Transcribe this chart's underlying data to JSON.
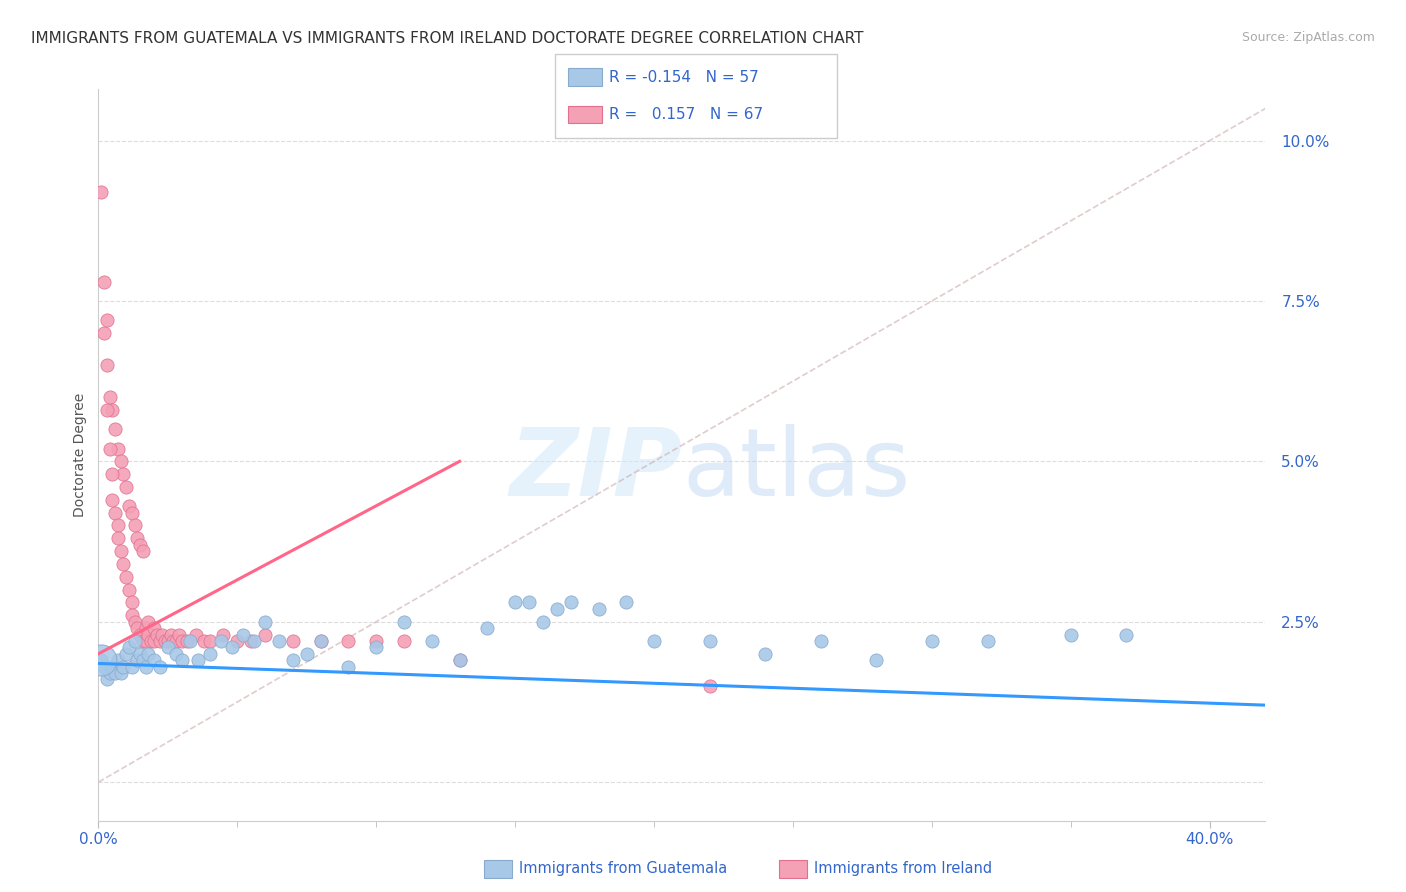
{
  "title": "IMMIGRANTS FROM GUATEMALA VS IMMIGRANTS FROM IRELAND DOCTORATE DEGREE CORRELATION CHART",
  "source": "Source: ZipAtlas.com",
  "ylabel": "Doctorate Degree",
  "yticks": [
    0.0,
    0.025,
    0.05,
    0.075,
    0.1
  ],
  "ytick_labels": [
    "",
    "2.5%",
    "5.0%",
    "7.5%",
    "10.0%"
  ],
  "xlim": [
    0.0,
    0.42
  ],
  "ylim": [
    -0.006,
    0.108
  ],
  "watermark": "ZIPatlas",
  "legend": {
    "series1_color": "#a8c8e8",
    "series1_edge": "#88aacc",
    "series1_label": "Immigrants from Guatemala",
    "series1_R": "-0.154",
    "series1_N": "57",
    "series2_color": "#f4a0b5",
    "series2_edge": "#e07090",
    "series2_label": "Immigrants from Ireland",
    "series2_R": "0.157",
    "series2_N": "67"
  },
  "regression_line_guatemala": {
    "color": "#3399ff",
    "x_start": 0.0,
    "y_start": 0.0185,
    "x_end": 0.42,
    "y_end": 0.012
  },
  "regression_line_ireland": {
    "color": "#ff6688",
    "x_start": 0.0,
    "y_start": 0.02,
    "x_end": 0.13,
    "y_end": 0.05
  },
  "diagonal_dashed_line": {
    "color": "#ccaaaa",
    "x_start": 0.0,
    "y_start": 0.0,
    "x_end": 0.42,
    "y_end": 0.105
  },
  "scatter_guatemala": [
    [
      0.001,
      0.019
    ],
    [
      0.002,
      0.018
    ],
    [
      0.003,
      0.016
    ],
    [
      0.004,
      0.017
    ],
    [
      0.005,
      0.018
    ],
    [
      0.006,
      0.017
    ],
    [
      0.007,
      0.019
    ],
    [
      0.008,
      0.017
    ],
    [
      0.009,
      0.018
    ],
    [
      0.01,
      0.02
    ],
    [
      0.011,
      0.021
    ],
    [
      0.012,
      0.018
    ],
    [
      0.013,
      0.022
    ],
    [
      0.014,
      0.019
    ],
    [
      0.015,
      0.02
    ],
    [
      0.016,
      0.019
    ],
    [
      0.017,
      0.018
    ],
    [
      0.018,
      0.02
    ],
    [
      0.02,
      0.019
    ],
    [
      0.022,
      0.018
    ],
    [
      0.025,
      0.021
    ],
    [
      0.028,
      0.02
    ],
    [
      0.03,
      0.019
    ],
    [
      0.033,
      0.022
    ],
    [
      0.036,
      0.019
    ],
    [
      0.04,
      0.02
    ],
    [
      0.044,
      0.022
    ],
    [
      0.048,
      0.021
    ],
    [
      0.052,
      0.023
    ],
    [
      0.056,
      0.022
    ],
    [
      0.06,
      0.025
    ],
    [
      0.065,
      0.022
    ],
    [
      0.07,
      0.019
    ],
    [
      0.075,
      0.02
    ],
    [
      0.08,
      0.022
    ],
    [
      0.09,
      0.018
    ],
    [
      0.1,
      0.021
    ],
    [
      0.11,
      0.025
    ],
    [
      0.12,
      0.022
    ],
    [
      0.13,
      0.019
    ],
    [
      0.14,
      0.024
    ],
    [
      0.15,
      0.028
    ],
    [
      0.155,
      0.028
    ],
    [
      0.16,
      0.025
    ],
    [
      0.165,
      0.027
    ],
    [
      0.17,
      0.028
    ],
    [
      0.18,
      0.027
    ],
    [
      0.19,
      0.028
    ],
    [
      0.2,
      0.022
    ],
    [
      0.22,
      0.022
    ],
    [
      0.24,
      0.02
    ],
    [
      0.26,
      0.022
    ],
    [
      0.28,
      0.019
    ],
    [
      0.3,
      0.022
    ],
    [
      0.32,
      0.022
    ],
    [
      0.35,
      0.023
    ],
    [
      0.37,
      0.023
    ]
  ],
  "scatter_guatemala_large": [
    [
      0.001,
      0.019,
      500
    ]
  ],
  "scatter_ireland": [
    [
      0.001,
      0.092
    ],
    [
      0.002,
      0.078
    ],
    [
      0.003,
      0.065
    ],
    [
      0.004,
      0.06
    ],
    [
      0.005,
      0.058
    ],
    [
      0.006,
      0.055
    ],
    [
      0.007,
      0.052
    ],
    [
      0.008,
      0.05
    ],
    [
      0.009,
      0.048
    ],
    [
      0.01,
      0.046
    ],
    [
      0.011,
      0.043
    ],
    [
      0.012,
      0.042
    ],
    [
      0.013,
      0.04
    ],
    [
      0.014,
      0.038
    ],
    [
      0.015,
      0.037
    ],
    [
      0.016,
      0.036
    ],
    [
      0.002,
      0.07
    ],
    [
      0.003,
      0.072
    ],
    [
      0.003,
      0.058
    ],
    [
      0.004,
      0.052
    ],
    [
      0.005,
      0.048
    ],
    [
      0.005,
      0.044
    ],
    [
      0.006,
      0.042
    ],
    [
      0.007,
      0.04
    ],
    [
      0.007,
      0.038
    ],
    [
      0.008,
      0.036
    ],
    [
      0.009,
      0.034
    ],
    [
      0.01,
      0.032
    ],
    [
      0.011,
      0.03
    ],
    [
      0.012,
      0.028
    ],
    [
      0.012,
      0.026
    ],
    [
      0.013,
      0.025
    ],
    [
      0.014,
      0.024
    ],
    [
      0.015,
      0.023
    ],
    [
      0.016,
      0.022
    ],
    [
      0.017,
      0.022
    ],
    [
      0.017,
      0.024
    ],
    [
      0.018,
      0.025
    ],
    [
      0.018,
      0.023
    ],
    [
      0.019,
      0.022
    ],
    [
      0.02,
      0.022
    ],
    [
      0.02,
      0.024
    ],
    [
      0.021,
      0.023
    ],
    [
      0.022,
      0.022
    ],
    [
      0.023,
      0.023
    ],
    [
      0.024,
      0.022
    ],
    [
      0.025,
      0.022
    ],
    [
      0.026,
      0.023
    ],
    [
      0.027,
      0.022
    ],
    [
      0.028,
      0.022
    ],
    [
      0.029,
      0.023
    ],
    [
      0.03,
      0.022
    ],
    [
      0.032,
      0.022
    ],
    [
      0.035,
      0.023
    ],
    [
      0.038,
      0.022
    ],
    [
      0.04,
      0.022
    ],
    [
      0.045,
      0.023
    ],
    [
      0.05,
      0.022
    ],
    [
      0.055,
      0.022
    ],
    [
      0.06,
      0.023
    ],
    [
      0.07,
      0.022
    ],
    [
      0.08,
      0.022
    ],
    [
      0.09,
      0.022
    ],
    [
      0.1,
      0.022
    ],
    [
      0.11,
      0.022
    ],
    [
      0.13,
      0.019
    ],
    [
      0.22,
      0.015
    ]
  ],
  "axis_color": "#3366cc",
  "grid_color": "#dddddd",
  "title_fontsize": 11,
  "source_fontsize": 9,
  "ylabel_fontsize": 10,
  "tick_fontsize": 11,
  "background_color": "#ffffff"
}
